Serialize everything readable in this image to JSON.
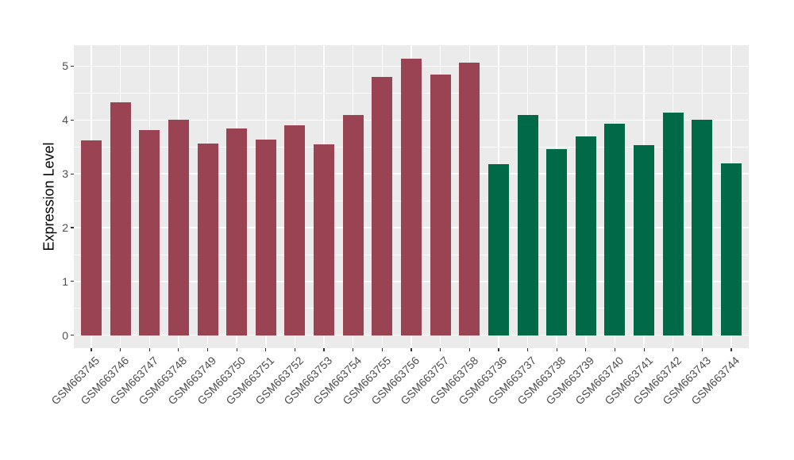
{
  "chart_data": {
    "type": "bar",
    "title": "",
    "xlabel": "",
    "ylabel": "Expression Level",
    "categories": [
      "GSM663745",
      "GSM663746",
      "GSM663747",
      "GSM663748",
      "GSM663749",
      "GSM663750",
      "GSM663751",
      "GSM663752",
      "GSM663753",
      "GSM663754",
      "GSM663755",
      "GSM663756",
      "GSM663757",
      "GSM663758",
      "GSM663736",
      "GSM663737",
      "GSM663738",
      "GSM663739",
      "GSM663740",
      "GSM663741",
      "GSM663742",
      "GSM663743",
      "GSM663744"
    ],
    "values": [
      3.62,
      4.33,
      3.82,
      4.01,
      3.56,
      3.84,
      3.64,
      3.9,
      3.55,
      4.09,
      4.8,
      5.14,
      4.84,
      5.07,
      3.18,
      4.1,
      3.46,
      3.69,
      3.93,
      3.54,
      4.13,
      4.01,
      3.19
    ],
    "groups": [
      "group_1",
      "group_1",
      "group_1",
      "group_1",
      "group_1",
      "group_1",
      "group_1",
      "group_1",
      "group_1",
      "group_1",
      "group_1",
      "group_1",
      "group_1",
      "group_1",
      "group_2",
      "group_2",
      "group_2",
      "group_2",
      "group_2",
      "group_2",
      "group_2",
      "group_2",
      "group_2"
    ],
    "group_colors": {
      "group_1": "#9A4453",
      "group_2": "#006948"
    },
    "yticks": [
      0,
      1,
      2,
      3,
      4,
      5
    ],
    "ytick_labels": [
      "0",
      "1",
      "2",
      "3",
      "4",
      "5"
    ],
    "ylim": [
      -0.24,
      5.39
    ],
    "bar_width_fraction": 0.71,
    "grid": {
      "horizontal_major": true,
      "horizontal_minor": true,
      "vertical_major": true
    },
    "legend": "none"
  },
  "style": {
    "figure_background": "#FFFFFF",
    "panel_background": "#EBEBEB",
    "gridline_color": "#FFFFFF",
    "axis_text_color": "#4D4D4D",
    "axis_title_color": "#000000",
    "tick_mark_color": "#333333"
  }
}
